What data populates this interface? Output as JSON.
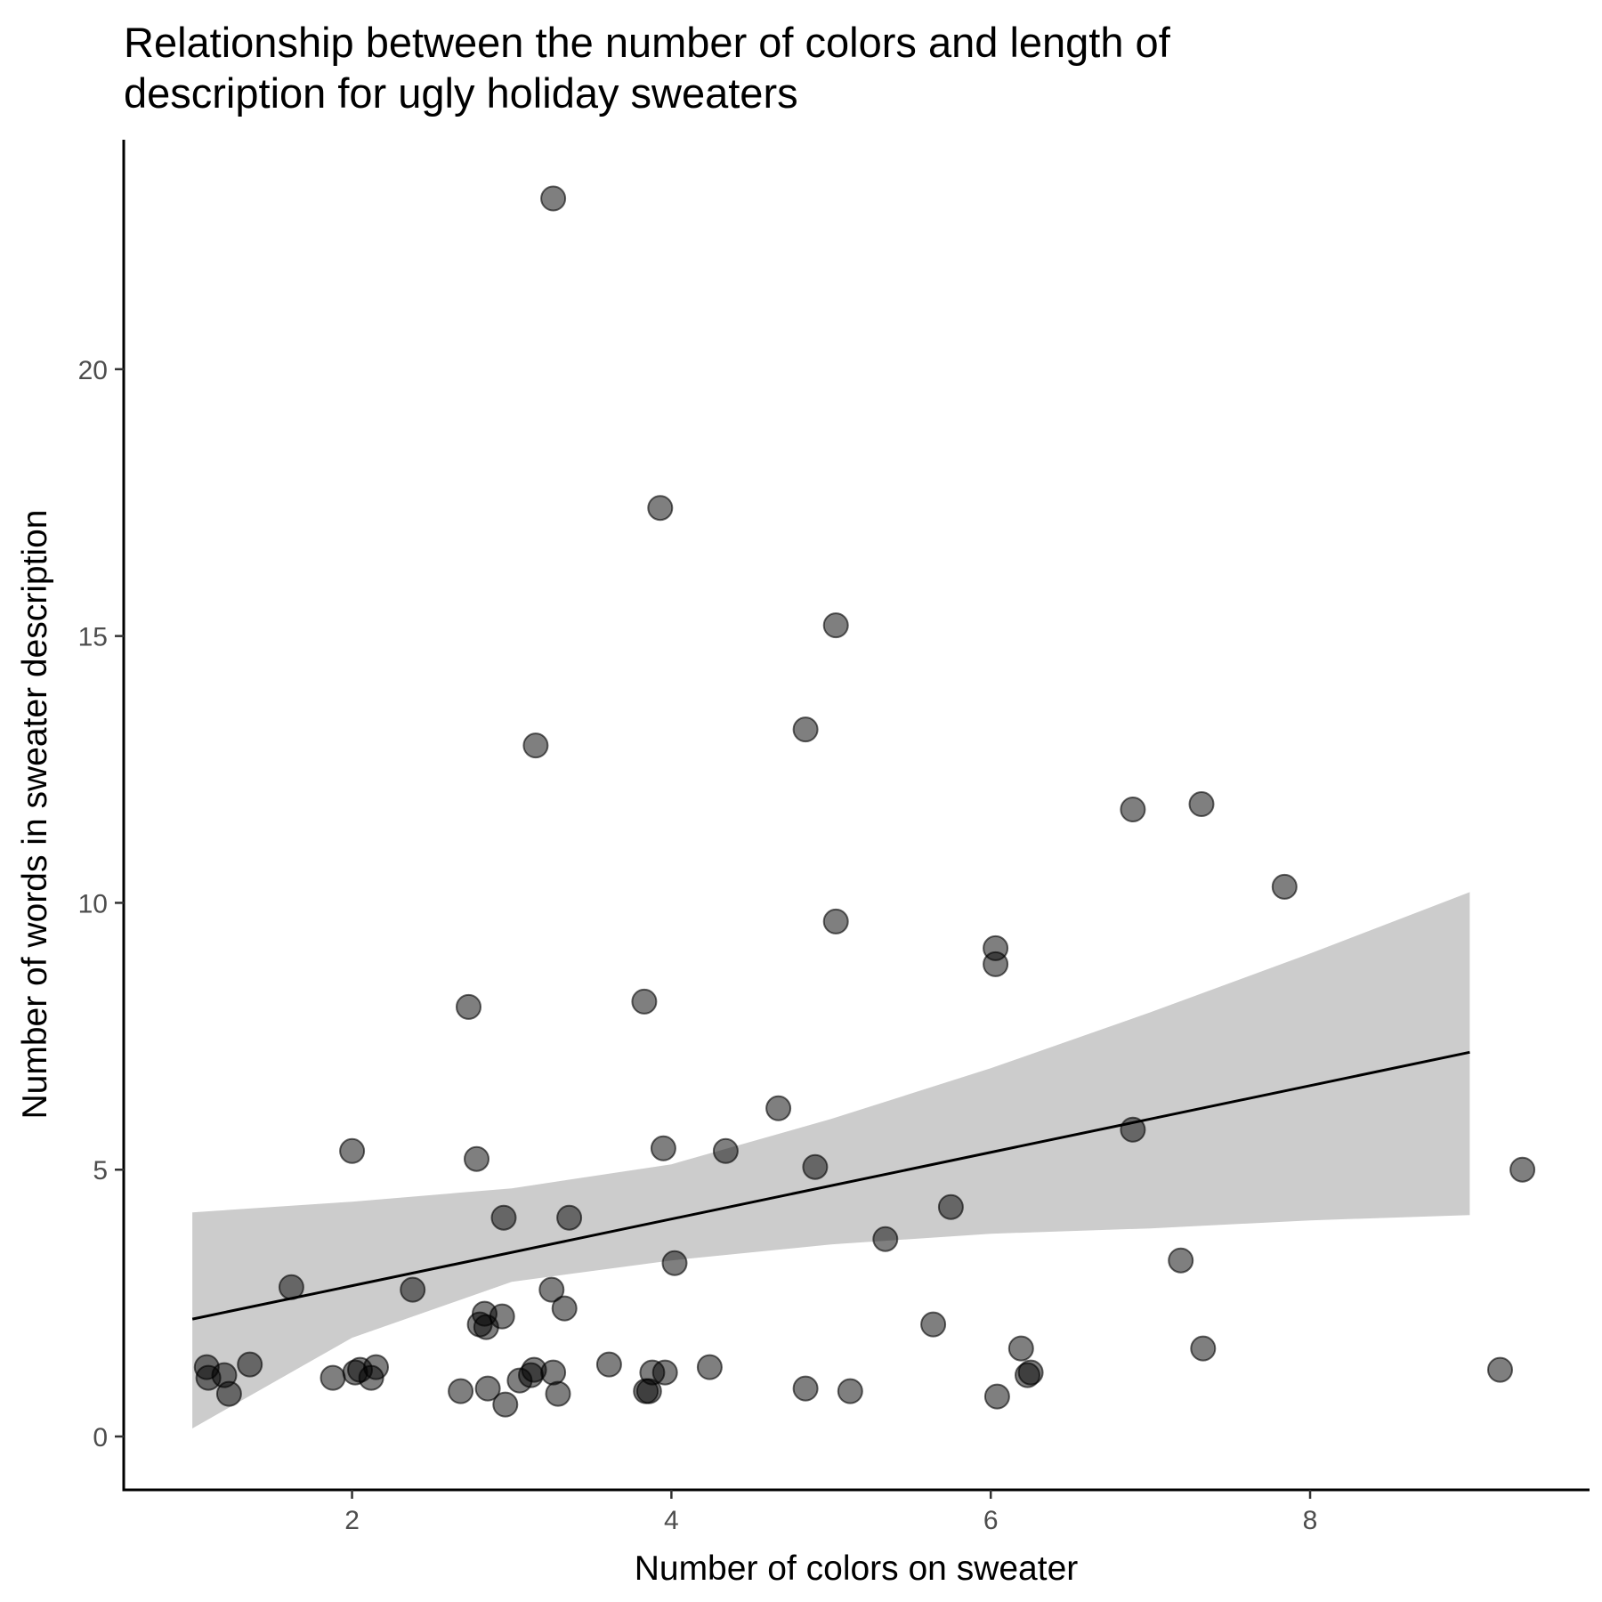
{
  "chart_data": {
    "type": "scatter",
    "title_lines": [
      "Relationship between the number of colors and length of",
      "description for ugly holiday sweaters"
    ],
    "xlabel": "Number of colors on sweater",
    "ylabel": "Number of words in sweater description",
    "xlim": [
      0.57,
      9.75
    ],
    "ylim": [
      -1.0,
      24.3
    ],
    "x_ticks": [
      2,
      4,
      6,
      8
    ],
    "y_ticks": [
      0,
      5,
      10,
      15,
      20
    ],
    "x_tick_labels": [
      "2",
      "4",
      "6",
      "8"
    ],
    "y_tick_labels": [
      "0",
      "5",
      "10",
      "15",
      "20"
    ],
    "grid": false,
    "legend": "none",
    "point_color": "#000000",
    "point_opacity": 0.5,
    "band_color": "#cccccc",
    "line_color": "#000000",
    "trend_line": {
      "x": [
        1.0,
        9.0
      ],
      "y": [
        2.2,
        7.2
      ]
    },
    "confidence_band": [
      {
        "x": 1.0,
        "lower": 0.15,
        "upper": 4.2
      },
      {
        "x": 2.0,
        "lower": 1.85,
        "upper": 4.4
      },
      {
        "x": 3.0,
        "lower": 2.9,
        "upper": 4.65
      },
      {
        "x": 4.0,
        "lower": 3.3,
        "upper": 5.1
      },
      {
        "x": 5.0,
        "lower": 3.6,
        "upper": 5.95
      },
      {
        "x": 6.0,
        "lower": 3.8,
        "upper": 6.9
      },
      {
        "x": 7.0,
        "lower": 3.9,
        "upper": 7.95
      },
      {
        "x": 8.0,
        "lower": 4.05,
        "upper": 9.05
      },
      {
        "x": 9.0,
        "lower": 4.15,
        "upper": 10.2
      }
    ],
    "points": [
      {
        "x": 1.09,
        "y": 1.3
      },
      {
        "x": 1.1,
        "y": 1.1
      },
      {
        "x": 1.2,
        "y": 1.15
      },
      {
        "x": 1.23,
        "y": 0.8
      },
      {
        "x": 1.36,
        "y": 1.35
      },
      {
        "x": 1.62,
        "y": 2.8
      },
      {
        "x": 1.88,
        "y": 1.1
      },
      {
        "x": 2.0,
        "y": 5.35
      },
      {
        "x": 2.02,
        "y": 1.2
      },
      {
        "x": 2.05,
        "y": 1.25
      },
      {
        "x": 2.12,
        "y": 1.1
      },
      {
        "x": 2.15,
        "y": 1.3
      },
      {
        "x": 2.38,
        "y": 2.75
      },
      {
        "x": 2.68,
        "y": 0.85
      },
      {
        "x": 2.73,
        "y": 8.05
      },
      {
        "x": 2.78,
        "y": 5.2
      },
      {
        "x": 2.8,
        "y": 2.1
      },
      {
        "x": 2.83,
        "y": 2.3
      },
      {
        "x": 2.84,
        "y": 2.05
      },
      {
        "x": 2.85,
        "y": 0.9
      },
      {
        "x": 2.94,
        "y": 2.25
      },
      {
        "x": 2.95,
        "y": 4.1
      },
      {
        "x": 2.96,
        "y": 0.6
      },
      {
        "x": 3.05,
        "y": 1.05
      },
      {
        "x": 3.12,
        "y": 1.15
      },
      {
        "x": 3.14,
        "y": 1.25
      },
      {
        "x": 3.15,
        "y": 12.95
      },
      {
        "x": 3.25,
        "y": 2.75
      },
      {
        "x": 3.26,
        "y": 1.2
      },
      {
        "x": 3.26,
        "y": 23.2
      },
      {
        "x": 3.29,
        "y": 0.8
      },
      {
        "x": 3.33,
        "y": 2.4
      },
      {
        "x": 3.36,
        "y": 4.1
      },
      {
        "x": 3.61,
        "y": 1.35
      },
      {
        "x": 3.83,
        "y": 8.15
      },
      {
        "x": 3.84,
        "y": 0.85
      },
      {
        "x": 3.86,
        "y": 0.85
      },
      {
        "x": 3.88,
        "y": 1.2
      },
      {
        "x": 3.93,
        "y": 17.4
      },
      {
        "x": 3.95,
        "y": 5.4
      },
      {
        "x": 3.96,
        "y": 1.2
      },
      {
        "x": 4.02,
        "y": 3.25
      },
      {
        "x": 4.24,
        "y": 1.3
      },
      {
        "x": 4.34,
        "y": 5.35
      },
      {
        "x": 4.67,
        "y": 6.15
      },
      {
        "x": 4.84,
        "y": 13.25
      },
      {
        "x": 4.84,
        "y": 0.9
      },
      {
        "x": 4.9,
        "y": 5.05
      },
      {
        "x": 5.03,
        "y": 15.2
      },
      {
        "x": 5.03,
        "y": 9.65
      },
      {
        "x": 5.12,
        "y": 0.85
      },
      {
        "x": 5.34,
        "y": 3.7
      },
      {
        "x": 5.64,
        "y": 2.1
      },
      {
        "x": 5.75,
        "y": 4.3
      },
      {
        "x": 6.03,
        "y": 9.15
      },
      {
        "x": 6.03,
        "y": 8.85
      },
      {
        "x": 6.04,
        "y": 0.75
      },
      {
        "x": 6.19,
        "y": 1.65
      },
      {
        "x": 6.23,
        "y": 1.15
      },
      {
        "x": 6.25,
        "y": 1.2
      },
      {
        "x": 6.89,
        "y": 11.75
      },
      {
        "x": 6.89,
        "y": 5.75
      },
      {
        "x": 7.19,
        "y": 3.3
      },
      {
        "x": 7.32,
        "y": 11.85
      },
      {
        "x": 7.33,
        "y": 1.65
      },
      {
        "x": 7.84,
        "y": 10.3
      },
      {
        "x": 9.19,
        "y": 1.25
      },
      {
        "x": 9.33,
        "y": 5.0
      }
    ]
  }
}
